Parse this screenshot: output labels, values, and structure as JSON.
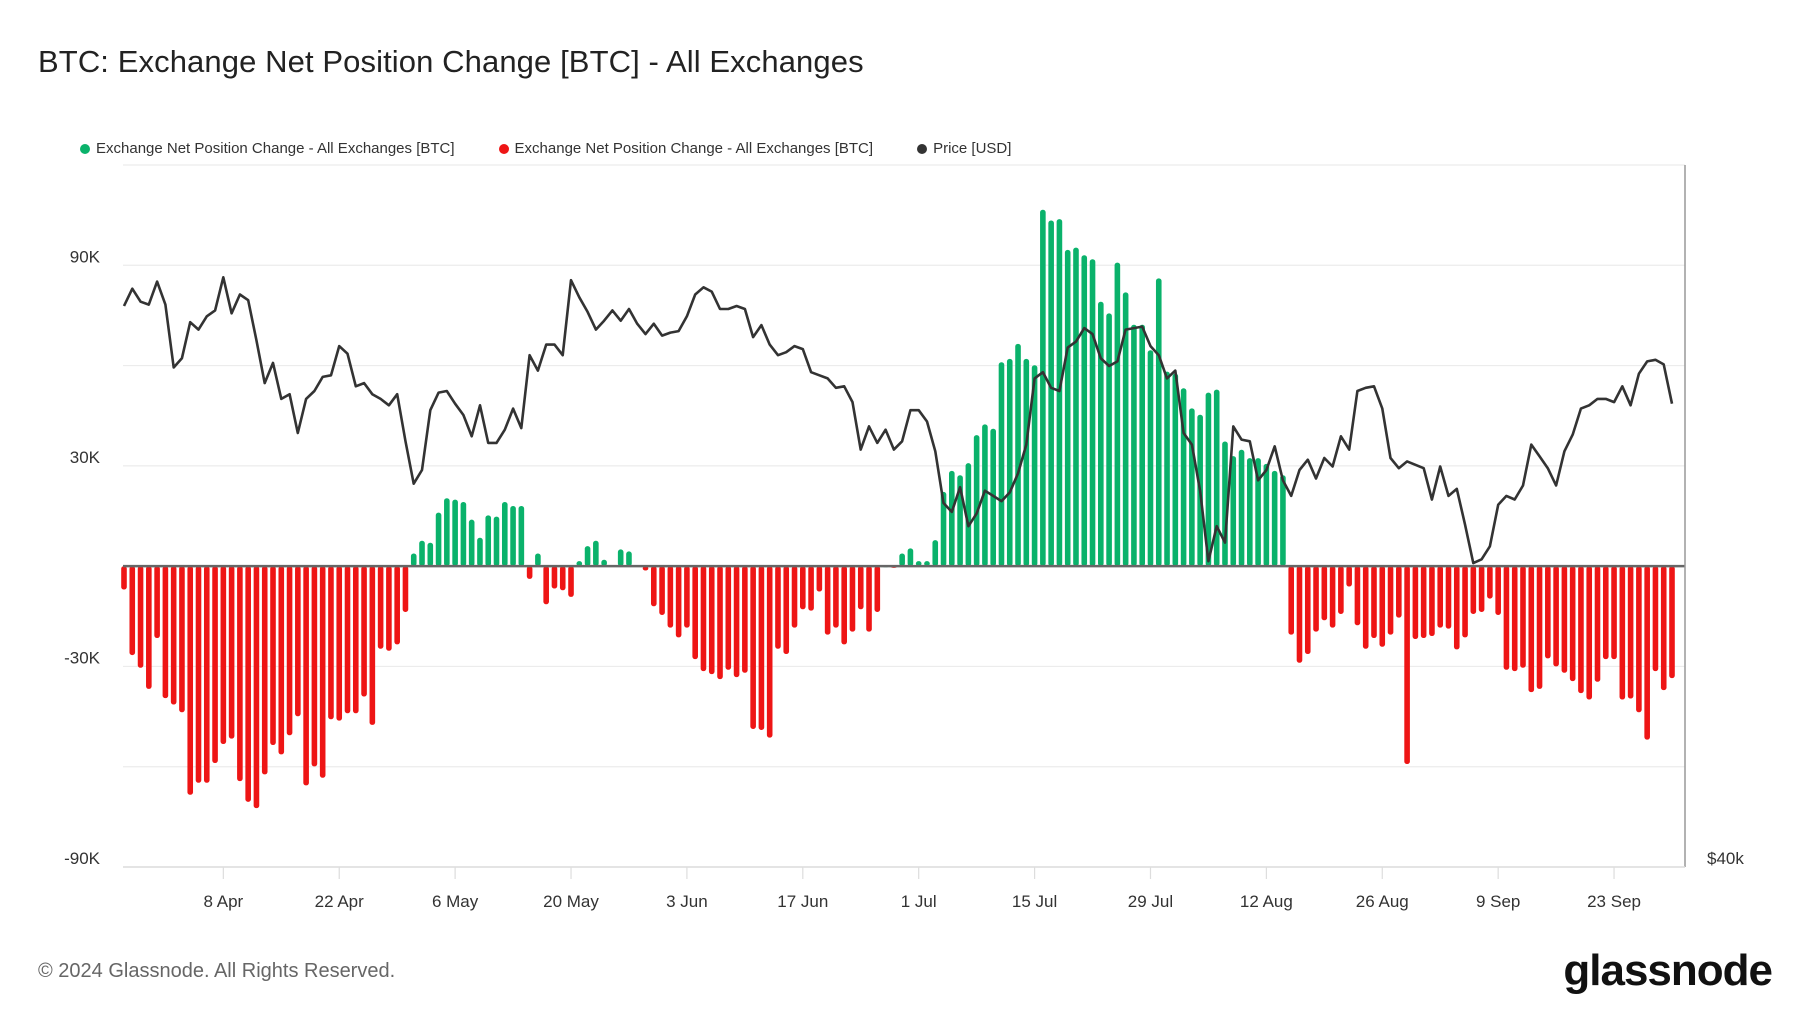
{
  "title": "BTC: Exchange Net Position Change [BTC] - All Exchanges",
  "legend": [
    {
      "label": "Exchange Net Position Change - All Exchanges [BTC]",
      "color": "#0ab26b"
    },
    {
      "label": "Exchange Net Position Change - All Exchanges [BTC]",
      "color": "#ee1515"
    },
    {
      "label": "Price [USD]",
      "color": "#333333"
    }
  ],
  "footer": "© 2024 Glassnode. All Rights Reserved.",
  "logo": "glassnode",
  "chart_data": {
    "type": "bar",
    "title": "BTC: Exchange Net Position Change [BTC] - All Exchanges",
    "x_start_date": "2024-03-27",
    "x_unit": "day",
    "x_ticks": [
      {
        "day": 12,
        "label": "8 Apr"
      },
      {
        "day": 26,
        "label": "22 Apr"
      },
      {
        "day": 40,
        "label": "6 May"
      },
      {
        "day": 54,
        "label": "20 May"
      },
      {
        "day": 68,
        "label": "3 Jun"
      },
      {
        "day": 82,
        "label": "17 Jun"
      },
      {
        "day": 96,
        "label": "1 Jul"
      },
      {
        "day": 110,
        "label": "15 Jul"
      },
      {
        "day": 124,
        "label": "29 Jul"
      },
      {
        "day": 138,
        "label": "12 Aug"
      },
      {
        "day": 152,
        "label": "26 Aug"
      },
      {
        "day": 166,
        "label": "9 Sep"
      },
      {
        "day": 180,
        "label": "23 Sep"
      }
    ],
    "left_axis": {
      "unit": "thousand BTC",
      "ylim": [
        -90,
        120
      ],
      "grid_step": 30,
      "tick_labels": [
        {
          "value": 90,
          "label": "90K"
        },
        {
          "value": 30,
          "label": "30K"
        },
        {
          "value": -30,
          "label": "-30K"
        },
        {
          "value": -90,
          "label": "-90K"
        }
      ]
    },
    "right_axis": {
      "unit": "thousand USD",
      "scale": "log",
      "ylim": [
        40,
        80
      ],
      "tick_labels": [
        {
          "value": 40,
          "label": "$40k"
        }
      ]
    },
    "grid": true,
    "legend_position": "top-left",
    "series": [
      {
        "name": "Exchange Net Position Change - All Exchanges [BTC]",
        "kind": "bar",
        "positive_color": "#0ab26b",
        "negative_color": "#ee1515",
        "values": [
          -7,
          -26.6,
          -30.4,
          -36.7,
          -21.5,
          -39.5,
          -41.4,
          -43.7,
          -68.4,
          -64.8,
          -64.8,
          -58.9,
          -53.2,
          -51.6,
          -64.3,
          -70.5,
          -72.4,
          -62.3,
          -53.5,
          -56.3,
          -50.6,
          -44.9,
          -65.6,
          -59.9,
          -63.3,
          -45.8,
          -46.2,
          -44,
          -44,
          -39,
          -47.5,
          -24.7,
          -25.3,
          -23.4,
          -13.7,
          3.8,
          7.6,
          7,
          16,
          20.3,
          19.9,
          19.2,
          13.9,
          8.5,
          15.2,
          14.8,
          19.2,
          18,
          18,
          -3.8,
          3.8,
          -11.4,
          -6.7,
          -7.2,
          -9.2,
          1.5,
          6,
          7.6,
          1.9,
          0.2,
          5,
          4.4,
          0.3,
          -1.3,
          -12,
          -14.6,
          -18.4,
          -21.3,
          -18.4,
          -27.8,
          -31.4,
          -32.3,
          -33.8,
          -31,
          -33.2,
          -31.9,
          -48.7,
          -49,
          -51.3,
          -24.7,
          -26.3,
          -18.4,
          -12.9,
          -13.3,
          -7.6,
          -20.5,
          -18.4,
          -23.4,
          -19.6,
          -12.9,
          -19.6,
          -13.7,
          0.1,
          -0.5,
          3.8,
          5.3,
          1.5,
          1.5,
          7.8,
          22.2,
          28.5,
          27.2,
          30.8,
          39.2,
          42.4,
          41.1,
          61,
          62,
          66.5,
          62,
          60.1,
          106.6,
          103.4,
          103.8,
          94.6,
          95.3,
          93,
          91.8,
          79.1,
          75.6,
          90.8,
          81.9,
          72.2,
          72.2,
          64.6,
          86.1,
          58.2,
          57.6,
          53.2,
          47.2,
          45.3,
          51.9,
          52.8,
          37.3,
          32.9,
          34.8,
          32.3,
          32.3,
          30.6,
          28.5,
          27.2,
          -20.5,
          -28.9,
          -26.3,
          -19.6,
          -16.2,
          -18.4,
          -14.3,
          -6.1,
          -17.7,
          -24.7,
          -21.5,
          -24.1,
          -20.5,
          -15.4,
          -59.2,
          -21.8,
          -21.5,
          -20.9,
          -18.4,
          -18.7,
          -24.9,
          -21.3,
          -14.3,
          -13.7,
          -9.7,
          -14.6,
          -31,
          -31.4,
          -30.4,
          -37.7,
          -36.7,
          -27.6,
          -30,
          -31.9,
          -34.4,
          -38,
          -39.9,
          -34.6,
          -27.8,
          -27.8,
          -39.9,
          -39.6,
          -43.7,
          -51.9,
          -31.4,
          -37.1,
          -33.5
        ]
      },
      {
        "name": "Price [USD]",
        "kind": "line",
        "color": "#333333",
        "values": [
          69.6,
          70.8,
          69.9,
          69.7,
          71.3,
          69.7,
          65.5,
          66.1,
          68.5,
          68.0,
          68.9,
          69.3,
          71.6,
          69.1,
          70.4,
          70.0,
          67.3,
          64.5,
          65.8,
          63.5,
          63.8,
          61.4,
          63.5,
          64.0,
          64.9,
          65.0,
          66.9,
          66.4,
          64.3,
          64.5,
          63.8,
          63.5,
          63.1,
          63.8,
          60.9,
          58.4,
          59.2,
          62.8,
          63.9,
          64.0,
          63.2,
          62.5,
          61.2,
          63.1,
          60.8,
          60.8,
          61.6,
          62.9,
          61.7,
          66.3,
          65.3,
          67.0,
          67.0,
          66.3,
          71.4,
          70.2,
          69.2,
          68.0,
          68.6,
          69.3,
          68.6,
          69.4,
          68.4,
          67.7,
          68.4,
          67.6,
          67.8,
          67.9,
          68.9,
          70.4,
          70.9,
          70.6,
          69.4,
          69.4,
          69.6,
          69.4,
          67.5,
          68.3,
          67.0,
          66.3,
          66.5,
          66.9,
          66.7,
          65.2,
          65.0,
          64.8,
          64.2,
          64.3,
          63.3,
          60.4,
          61.8,
          60.8,
          61.6,
          60.4,
          60.9,
          62.8,
          62.8,
          62.1,
          60.3,
          57.3,
          56.8,
          58.2,
          56.0,
          56.7,
          58.0,
          57.7,
          57.4,
          57.9,
          59.0,
          60.7,
          64.8,
          65.2,
          64.2,
          64.0,
          66.8,
          67.2,
          68.1,
          67.7,
          66.1,
          65.6,
          65.9,
          68.0,
          68.1,
          68.2,
          66.9,
          66.3,
          64.8,
          65.3,
          61.4,
          60.7,
          58.0,
          54.1,
          56.0,
          55.1,
          61.8,
          61.0,
          60.9,
          58.6,
          59.2,
          60.6,
          58.6,
          57.7,
          59.2,
          59.8,
          58.7,
          59.9,
          59.4,
          61.2,
          60.4,
          64.0,
          64.2,
          64.3,
          62.9,
          59.9,
          59.3,
          59.7,
          59.5,
          59.3,
          57.5,
          59.4,
          57.7,
          58.1,
          56.1,
          54.0,
          54.2,
          54.9,
          57.2,
          57.7,
          57.5,
          58.3,
          60.7,
          60.0,
          59.3,
          58.3,
          60.3,
          61.3,
          62.9,
          63.1,
          63.5,
          63.5,
          63.3,
          64.3,
          63.1,
          65.1,
          65.9,
          66.0,
          65.7,
          63.2
        ]
      }
    ]
  }
}
